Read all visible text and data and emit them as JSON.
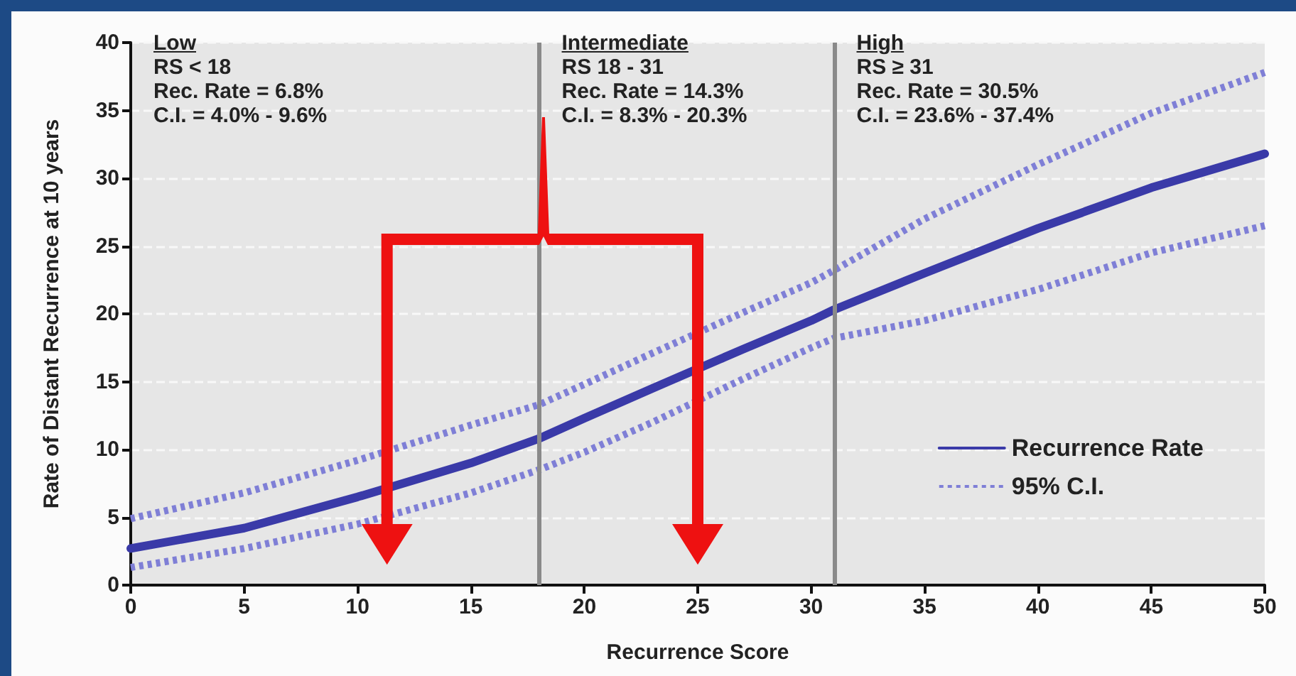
{
  "chart_data": {
    "type": "line",
    "xlabel": "Recurrence Score",
    "ylabel": "Rate of Distant Recurrence at 10 years",
    "x": [
      0,
      5,
      10,
      15,
      18,
      20,
      23,
      27,
      30,
      31,
      35,
      40,
      45,
      50
    ],
    "series": [
      {
        "name": "Recurrence Rate",
        "color": "#3a3aa8",
        "line_style": "solid",
        "values": [
          2.7,
          4.2,
          6.5,
          9,
          10.8,
          12.3,
          14.5,
          17.4,
          19.5,
          20.3,
          23,
          26.3,
          29.3,
          31.8
        ]
      },
      {
        "name": "95% C.I.",
        "color": "#7f7fd6",
        "line_style": "dotted",
        "values": [
          4.9,
          6.8,
          9.2,
          11.8,
          13.3,
          14.8,
          17.1,
          20.1,
          22.3,
          23.2,
          27,
          31,
          34.8,
          37.8
        ]
      },
      {
        "color": "#7f7fd6",
        "line_style": "dotted",
        "values": [
          1.3,
          2.7,
          4.5,
          6.8,
          8.5,
          9.8,
          12.0,
          15.2,
          17.5,
          18.2,
          19.5,
          21.8,
          24.5,
          26.5
        ]
      }
    ],
    "xlim": [
      0,
      50
    ],
    "xticks": [
      0,
      5,
      10,
      15,
      20,
      25,
      30,
      35,
      40,
      45,
      50
    ],
    "ylim": [
      0,
      40
    ],
    "yticks": [
      0,
      5,
      10,
      15,
      20,
      25,
      30,
      35,
      40
    ],
    "ref_lines": [
      {
        "axis": "x",
        "value": 18,
        "color": "#8a8a8a"
      },
      {
        "axis": "x",
        "value": 31,
        "color": "#8a8a8a"
      }
    ],
    "annotations": [
      "Low\nRS < 18\nRec. Rate = 6.8%\nC.I. = 4.0% - 9.6%",
      "Intermediate\nRS 18 - 31\nRec. Rate = 14.3%\nC.I. = 8.3% - 20.3%",
      "High\nRS ≥ 31\nRec. Rate = 30.5%\nC.I. = 23.6% - 37.4%"
    ],
    "grid": "y",
    "legend": "bottom right",
    "marker": "none"
  }
}
